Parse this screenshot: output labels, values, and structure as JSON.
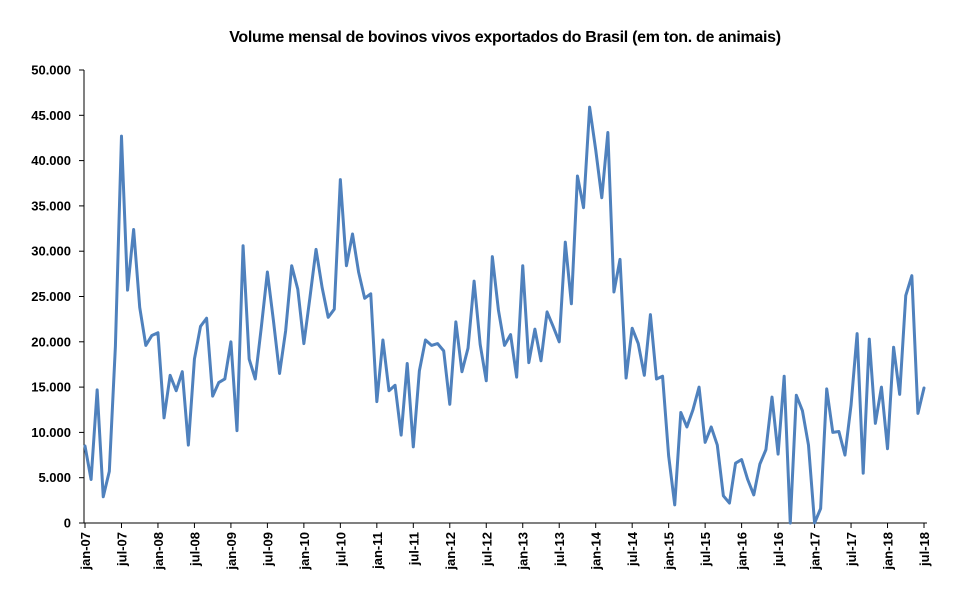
{
  "chart_data": {
    "type": "line",
    "title": "Volume mensal de bovinos vivos exportados do Brasil (em ton. de animais)",
    "xlabel": "",
    "ylabel": "",
    "ylim": [
      0,
      50000
    ],
    "yticks": [
      0,
      5000,
      10000,
      15000,
      20000,
      25000,
      30000,
      35000,
      40000,
      45000,
      50000
    ],
    "ytick_labels": [
      "0",
      "5.000",
      "10.000",
      "15.000",
      "20.000",
      "25.000",
      "30.000",
      "35.000",
      "40.000",
      "45.000",
      "50.000"
    ],
    "x_start": "jan-07",
    "x_end": "jul-18",
    "xtick_labels": [
      "jan-07",
      "jul-07",
      "jan-08",
      "jul-08",
      "jan-09",
      "jul-09",
      "jan-10",
      "jul-10",
      "jan-11",
      "jul-11",
      "jan-12",
      "jul-12",
      "jan-13",
      "jul-13",
      "jan-14",
      "jul-14",
      "jan-15",
      "jul-15",
      "jan-16",
      "jul-16",
      "jan-17",
      "jul-17",
      "jan-18",
      "jul-18"
    ],
    "grid": false,
    "legend": "none",
    "series": [
      {
        "name": "Volume mensal",
        "color": "#4f81bd",
        "values": [
          8500,
          4800,
          14700,
          2900,
          5700,
          19500,
          42700,
          25700,
          32400,
          23800,
          19600,
          20700,
          21000,
          11600,
          16300,
          14600,
          16700,
          8600,
          18100,
          21700,
          22600,
          14000,
          15500,
          15900,
          20000,
          10200,
          30600,
          18100,
          15900,
          21600,
          27700,
          22300,
          16500,
          21200,
          28400,
          25800,
          19800,
          24900,
          30200,
          26000,
          22700,
          23600,
          37900,
          28400,
          31900,
          27700,
          24800,
          25300,
          13400,
          20200,
          14600,
          15200,
          9700,
          17600,
          8400,
          16800,
          20200,
          19600,
          19800,
          19000,
          13100,
          22200,
          16700,
          19300,
          26700,
          19700,
          15700,
          29400,
          23500,
          19600,
          20800,
          16100,
          28400,
          17700,
          21400,
          17900,
          23300,
          21700,
          20000,
          31000,
          24200,
          38300,
          34800,
          45900,
          41200,
          35900,
          43100,
          25500,
          29100,
          16000,
          21500,
          19800,
          16300,
          23000,
          15900,
          16200,
          7400,
          2000,
          12200,
          10600,
          12500,
          15000,
          8900,
          10600,
          8600,
          3000,
          2200,
          6600,
          7000,
          4800,
          3100,
          6500,
          8100,
          13900,
          7600,
          16200,
          0,
          14100,
          12400,
          8600,
          0,
          1600,
          14800,
          10000,
          10100,
          7500,
          13000,
          20900,
          5500,
          20300,
          11000,
          15000,
          8200,
          19400,
          14200,
          25100,
          27300,
          12100,
          14900
        ]
      }
    ]
  }
}
